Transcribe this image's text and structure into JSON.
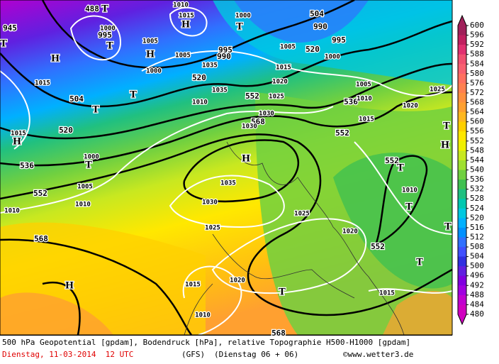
{
  "map": {
    "contour_labels": [
      "488",
      "1010",
      "1015",
      "1000",
      "504",
      "990",
      "995",
      "520",
      "1000",
      "1005",
      "995",
      "990",
      "1005",
      "1005",
      "995",
      "1000",
      "1000",
      "520",
      "1015",
      "1020",
      "1025",
      "552",
      "1035",
      "1010",
      "504",
      "1015",
      "1015",
      "520",
      "536",
      "1000",
      "1005",
      "552",
      "1010",
      "1010",
      "568",
      "1030",
      "1030",
      "552",
      "536",
      "1005",
      "1010",
      "1015",
      "1020",
      "1025",
      "552",
      "1010",
      "552",
      "1020",
      "1025",
      "1030",
      "1025",
      "1035",
      "568",
      "1015",
      "1020",
      "1015",
      "1010",
      "568",
      "945",
      "1035"
    ],
    "pressure_centers": [
      "T",
      "H",
      "H",
      "H",
      "H",
      "H",
      "H",
      "H",
      "T",
      "T",
      "T",
      "T",
      "T",
      "T",
      "T",
      "T",
      "T",
      "T",
      "T",
      "T"
    ]
  },
  "legend": {
    "labels": [
      "600",
      "596",
      "592",
      "588",
      "584",
      "580",
      "576",
      "572",
      "568",
      "564",
      "560",
      "556",
      "552",
      "548",
      "544",
      "540",
      "536",
      "532",
      "528",
      "524",
      "520",
      "516",
      "512",
      "508",
      "504",
      "500",
      "496",
      "492",
      "488",
      "484",
      "480"
    ],
    "colors": [
      "#a0205a",
      "#c02060",
      "#e03070",
      "#f05070",
      "#f86070",
      "#ff7060",
      "#ff8050",
      "#ff9040",
      "#ffa030",
      "#ffb820",
      "#ffd000",
      "#ffe800",
      "#f0f000",
      "#c8e820",
      "#a0e030",
      "#70d040",
      "#40c050",
      "#20c080",
      "#00c8b0",
      "#00c8e0",
      "#00b0ff",
      "#0090ff",
      "#3070ff",
      "#4050ff",
      "#3030e0",
      "#6020e0",
      "#8000e0",
      "#a000e0",
      "#c000d0",
      "#d000c0"
    ]
  },
  "footer": {
    "description": "500 hPa Geopotential [gpdam], Bodendruck [hPa], relative Topographie H500-H1000 [gpdam]",
    "date": "Dienstag, 11-03-2014  12 UTC",
    "model": "(GFS)",
    "run": "(Dienstag 06 + 06)",
    "source": "©www.wetter3.de"
  }
}
